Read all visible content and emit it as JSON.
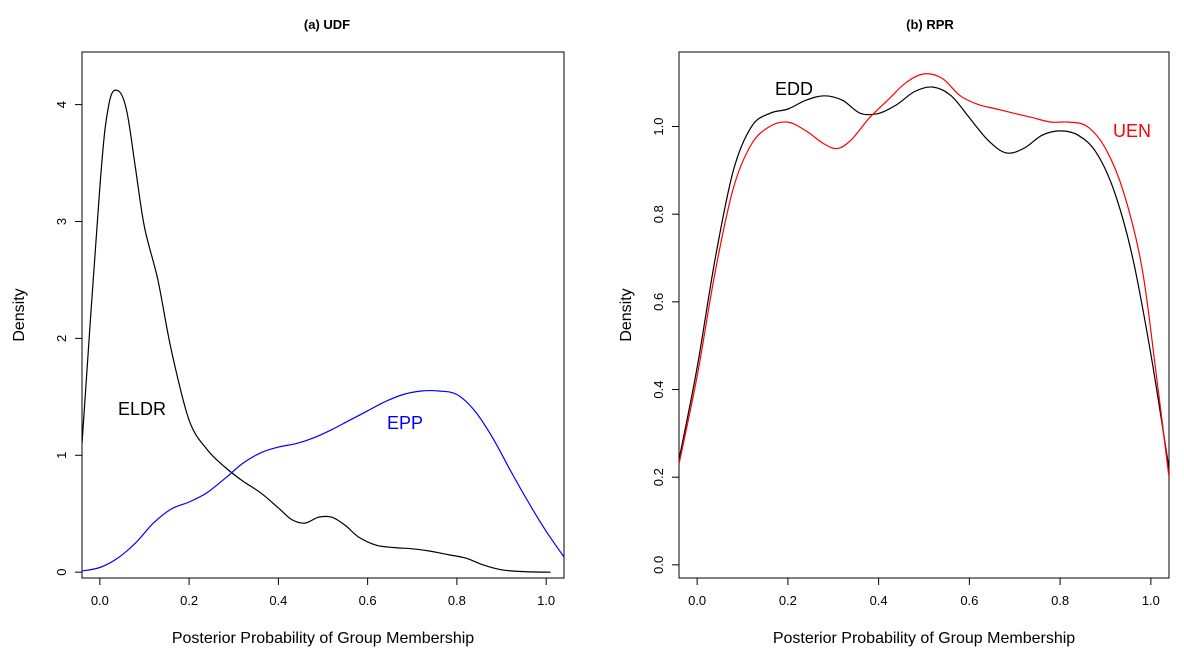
{
  "chart_data": [
    {
      "type": "line",
      "title": "(a) UDF",
      "xlabel": "Posterior Probability of Group Membership",
      "ylabel": "Density",
      "xlim": [
        -0.04,
        1.04
      ],
      "ylim": [
        -0.05,
        4.45
      ],
      "xticks": [
        "0.0",
        "0.2",
        "0.4",
        "0.6",
        "0.8",
        "1.0"
      ],
      "yticks": [
        "0",
        "1",
        "2",
        "3",
        "4"
      ],
      "grid": false,
      "legend": "none",
      "series": [
        {
          "name": "ELDR",
          "color": "#000000",
          "points": [
            [
              -0.04,
              1.1
            ],
            [
              0.0,
              3.3
            ],
            [
              0.02,
              4.0
            ],
            [
              0.04,
              4.12
            ],
            [
              0.06,
              3.95
            ],
            [
              0.08,
              3.45
            ],
            [
              0.1,
              2.95
            ],
            [
              0.13,
              2.5
            ],
            [
              0.16,
              1.9
            ],
            [
              0.2,
              1.3
            ],
            [
              0.24,
              1.05
            ],
            [
              0.28,
              0.9
            ],
            [
              0.32,
              0.78
            ],
            [
              0.36,
              0.68
            ],
            [
              0.4,
              0.55
            ],
            [
              0.43,
              0.45
            ],
            [
              0.46,
              0.42
            ],
            [
              0.49,
              0.47
            ],
            [
              0.52,
              0.47
            ],
            [
              0.55,
              0.4
            ],
            [
              0.58,
              0.3
            ],
            [
              0.62,
              0.23
            ],
            [
              0.66,
              0.21
            ],
            [
              0.7,
              0.2
            ],
            [
              0.74,
              0.18
            ],
            [
              0.78,
              0.15
            ],
            [
              0.82,
              0.12
            ],
            [
              0.86,
              0.06
            ],
            [
              0.9,
              0.02
            ],
            [
              0.95,
              0.005
            ],
            [
              1.01,
              0.0
            ]
          ]
        },
        {
          "name": "EPP",
          "color": "#0000ff",
          "points": [
            [
              -0.04,
              0.01
            ],
            [
              0.0,
              0.04
            ],
            [
              0.04,
              0.12
            ],
            [
              0.08,
              0.25
            ],
            [
              0.12,
              0.42
            ],
            [
              0.16,
              0.54
            ],
            [
              0.2,
              0.6
            ],
            [
              0.24,
              0.68
            ],
            [
              0.28,
              0.8
            ],
            [
              0.32,
              0.93
            ],
            [
              0.36,
              1.02
            ],
            [
              0.4,
              1.07
            ],
            [
              0.44,
              1.1
            ],
            [
              0.48,
              1.15
            ],
            [
              0.52,
              1.22
            ],
            [
              0.56,
              1.3
            ],
            [
              0.6,
              1.38
            ],
            [
              0.64,
              1.46
            ],
            [
              0.68,
              1.52
            ],
            [
              0.72,
              1.55
            ],
            [
              0.76,
              1.55
            ],
            [
              0.8,
              1.52
            ],
            [
              0.84,
              1.38
            ],
            [
              0.88,
              1.15
            ],
            [
              0.92,
              0.87
            ],
            [
              0.96,
              0.6
            ],
            [
              1.0,
              0.35
            ],
            [
              1.04,
              0.13
            ]
          ]
        }
      ]
    },
    {
      "type": "line",
      "title": "(b) RPR",
      "xlabel": "Posterior Probability of Group Membership",
      "ylabel": "Density",
      "xlim": [
        -0.04,
        1.04
      ],
      "ylim": [
        -0.03,
        1.17
      ],
      "xticks": [
        "0.0",
        "0.2",
        "0.4",
        "0.6",
        "0.8",
        "1.0"
      ],
      "yticks": [
        "0.0",
        "0.2",
        "0.4",
        "0.6",
        "0.8",
        "1.0"
      ],
      "grid": false,
      "legend": "none",
      "series": [
        {
          "name": "EDD",
          "color": "#000000",
          "points": [
            [
              -0.04,
              0.24
            ],
            [
              0.0,
              0.45
            ],
            [
              0.04,
              0.7
            ],
            [
              0.08,
              0.9
            ],
            [
              0.12,
              1.0
            ],
            [
              0.16,
              1.03
            ],
            [
              0.2,
              1.04
            ],
            [
              0.24,
              1.06
            ],
            [
              0.28,
              1.07
            ],
            [
              0.32,
              1.06
            ],
            [
              0.36,
              1.03
            ],
            [
              0.4,
              1.03
            ],
            [
              0.44,
              1.05
            ],
            [
              0.48,
              1.08
            ],
            [
              0.52,
              1.09
            ],
            [
              0.56,
              1.07
            ],
            [
              0.6,
              1.02
            ],
            [
              0.64,
              0.97
            ],
            [
              0.68,
              0.94
            ],
            [
              0.72,
              0.95
            ],
            [
              0.76,
              0.98
            ],
            [
              0.8,
              0.99
            ],
            [
              0.84,
              0.98
            ],
            [
              0.88,
              0.94
            ],
            [
              0.92,
              0.85
            ],
            [
              0.96,
              0.7
            ],
            [
              1.0,
              0.48
            ],
            [
              1.04,
              0.22
            ]
          ]
        },
        {
          "name": "UEN",
          "color": "#ff0000",
          "points": [
            [
              -0.04,
              0.23
            ],
            [
              0.0,
              0.43
            ],
            [
              0.04,
              0.67
            ],
            [
              0.08,
              0.86
            ],
            [
              0.12,
              0.96
            ],
            [
              0.16,
              1.0
            ],
            [
              0.2,
              1.01
            ],
            [
              0.24,
              0.99
            ],
            [
              0.28,
              0.96
            ],
            [
              0.31,
              0.95
            ],
            [
              0.34,
              0.97
            ],
            [
              0.38,
              1.02
            ],
            [
              0.42,
              1.06
            ],
            [
              0.46,
              1.1
            ],
            [
              0.5,
              1.12
            ],
            [
              0.54,
              1.11
            ],
            [
              0.58,
              1.07
            ],
            [
              0.62,
              1.05
            ],
            [
              0.66,
              1.04
            ],
            [
              0.7,
              1.03
            ],
            [
              0.74,
              1.02
            ],
            [
              0.78,
              1.01
            ],
            [
              0.82,
              1.01
            ],
            [
              0.86,
              1.0
            ],
            [
              0.9,
              0.95
            ],
            [
              0.94,
              0.85
            ],
            [
              0.98,
              0.68
            ],
            [
              1.01,
              0.45
            ],
            [
              1.04,
              0.2
            ]
          ]
        }
      ]
    }
  ]
}
